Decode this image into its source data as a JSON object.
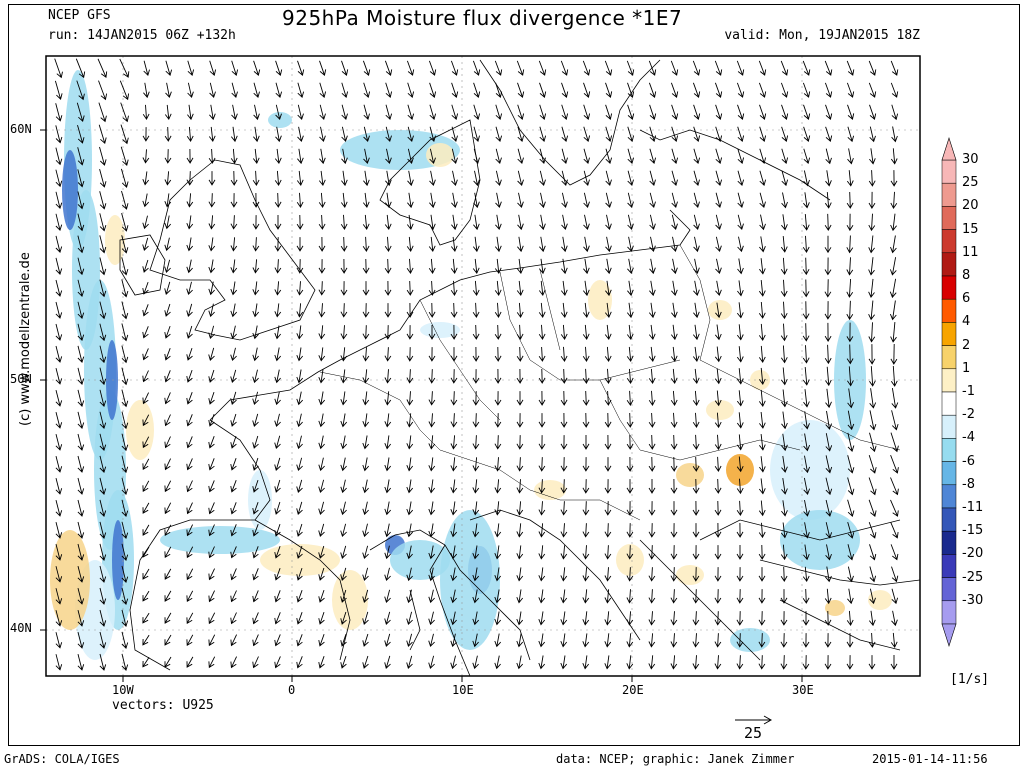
{
  "header": {
    "model": "NCEP GFS",
    "title": "925hPa Moisture flux divergence *1E7",
    "run": "run: 14JAN2015 06Z +132h",
    "valid": "valid: Mon, 19JAN2015 18Z"
  },
  "axes": {
    "lat_labels": [
      "60N",
      "50N",
      "40N"
    ],
    "lon_labels": [
      "10W",
      "0",
      "10E",
      "20E",
      "30E"
    ]
  },
  "vectors_label": "vectors: U925",
  "reference_vector": "25",
  "units": "[1/s]",
  "colorbar": {
    "levels": [
      "30",
      "25",
      "20",
      "15",
      "11",
      "8",
      "6",
      "4",
      "2",
      "1",
      "-1",
      "-2",
      "-4",
      "-6",
      "-8",
      "-11",
      "-15",
      "-20",
      "-25",
      "-30"
    ],
    "colors": [
      "#f7b7b7",
      "#ee9a8f",
      "#e06a5a",
      "#cc3a2e",
      "#b01a14",
      "#d80000",
      "#ff5a00",
      "#f7a400",
      "#f7d26b",
      "#fdf0c6",
      "#ffffff",
      "#d7f0fb",
      "#96dcef",
      "#66b6e6",
      "#4f86d6",
      "#3457b8",
      "#1a2a8e",
      "#3a3ab8",
      "#6464d6",
      "#a69cef"
    ]
  },
  "credit": "(c) www.modellzentrale.de",
  "footer": {
    "software": "GrADS: COLA/IGES",
    "data_credit": "data: NCEP; graphic: Janek Zimmer",
    "timestamp": "2015-01-14-11:56"
  },
  "palette": {
    "positive_light": "#fdecc0",
    "positive_mid": "#f7d38a",
    "positive_strong": "#f2a52b",
    "negative_light": "#d7f0fb",
    "negative_mid": "#9fdcf0",
    "negative_strong": "#3f74cf",
    "coastline": "#000000",
    "vectors": "#000000",
    "grid": "#999999"
  }
}
